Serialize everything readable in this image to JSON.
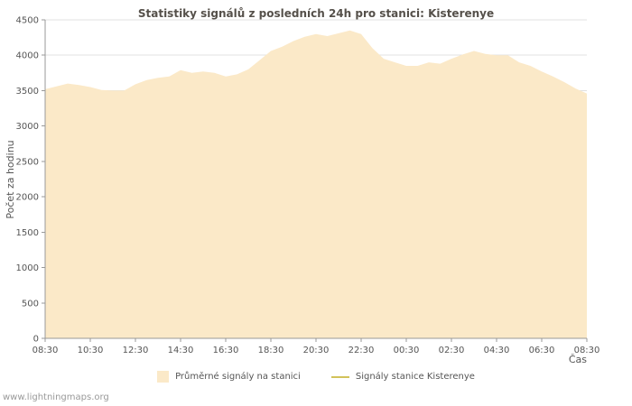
{
  "page": {
    "watermark": "www.lightningmaps.org"
  },
  "chart_data": {
    "type": "area",
    "title": "Statistiky signálů z posledních 24h pro stanici: Kisterenye",
    "xlabel": "Čas",
    "ylabel": "Počet za hodinu",
    "ylim": [
      0,
      4500
    ],
    "y_tick_step": 500,
    "grid": true,
    "legend_position": "bottom",
    "x_tick_labels": [
      "08:30",
      "10:30",
      "12:30",
      "14:30",
      "16:30",
      "18:30",
      "20:30",
      "22:30",
      "00:30",
      "02:30",
      "04:30",
      "06:30",
      "08:30"
    ],
    "x": [
      "08:30",
      "09:00",
      "09:30",
      "10:00",
      "10:30",
      "11:00",
      "11:30",
      "12:00",
      "12:30",
      "13:00",
      "13:30",
      "14:00",
      "14:30",
      "15:00",
      "15:30",
      "16:00",
      "16:30",
      "17:00",
      "17:30",
      "18:00",
      "18:30",
      "19:00",
      "19:30",
      "20:00",
      "20:30",
      "21:00",
      "21:30",
      "22:00",
      "22:30",
      "23:00",
      "23:30",
      "00:00",
      "00:30",
      "01:00",
      "01:30",
      "02:00",
      "02:30",
      "03:00",
      "03:30",
      "04:00",
      "04:30",
      "05:00",
      "05:30",
      "06:00",
      "06:30",
      "07:00",
      "07:30",
      "08:00",
      "08:30"
    ],
    "series": [
      {
        "name": "Průměrné signály na stanici",
        "type": "area",
        "color": "#fbe9c8",
        "values": [
          3520,
          3560,
          3600,
          3580,
          3550,
          3510,
          3500,
          3500,
          3590,
          3650,
          3680,
          3700,
          3790,
          3750,
          3770,
          3750,
          3700,
          3730,
          3800,
          3930,
          4060,
          4120,
          4200,
          4260,
          4300,
          4270,
          4310,
          4350,
          4300,
          4100,
          3950,
          3900,
          3850,
          3850,
          3900,
          3880,
          3950,
          4010,
          4060,
          4020,
          4000,
          4000,
          3900,
          3850,
          3770,
          3700,
          3620,
          3530,
          3460
        ]
      },
      {
        "name": "Signály stanice Kisterenye",
        "type": "line",
        "color": "#d2c25a",
        "values": []
      }
    ],
    "colors": {
      "grid": "#e0e0e0",
      "axis": "#999999",
      "tick_text": "#555555"
    }
  }
}
